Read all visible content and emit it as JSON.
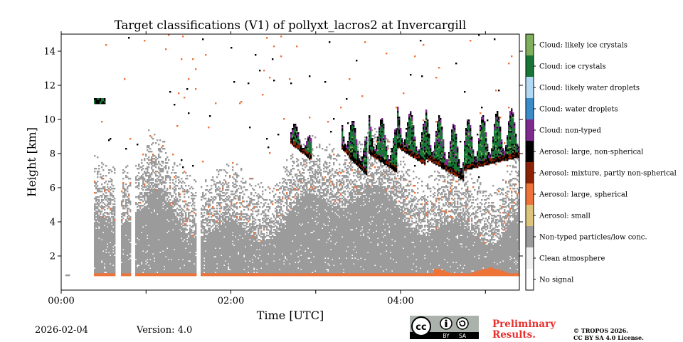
{
  "chart_data": {
    "type": "heatmap",
    "title": "Target classifications (V1) of pollyxt_lacros2 at Invercargill",
    "xlabel": "Time [UTC]",
    "ylabel": "Height [km]",
    "xlim_hours": [
      0,
      5.4
    ],
    "ylim_km": [
      0,
      15
    ],
    "x_ticks": [
      {
        "value": 0,
        "label": "00:00"
      },
      {
        "value": 1,
        "label": ""
      },
      {
        "value": 2,
        "label": "02:00"
      },
      {
        "value": 3,
        "label": ""
      },
      {
        "value": 4,
        "label": "04:00"
      },
      {
        "value": 5,
        "label": ""
      }
    ],
    "y_ticks": [
      {
        "value": 2,
        "label": "2"
      },
      {
        "value": 4,
        "label": "4"
      },
      {
        "value": 6,
        "label": "6"
      },
      {
        "value": 8,
        "label": "8"
      },
      {
        "value": 10,
        "label": "10"
      },
      {
        "value": 12,
        "label": "12"
      },
      {
        "value": 14,
        "label": "14"
      }
    ],
    "colorbar_classes": [
      {
        "label": "No signal",
        "color": "#ffffff"
      },
      {
        "label": "Clean atmosphere",
        "color": "#efefef"
      },
      {
        "label": "Non-typed particles/low conc.",
        "color": "#9b9b9b"
      },
      {
        "label": "Aerosol: small",
        "color": "#dcc479"
      },
      {
        "label": "Aerosol: large, spherical",
        "color": "#ed7339"
      },
      {
        "label": "Aerosol: mixture, partly non-spherical",
        "color": "#8b2206"
      },
      {
        "label": "Aerosol: large, non-spherical",
        "color": "#000000"
      },
      {
        "label": "Cloud: non-typed",
        "color": "#7f2a8e"
      },
      {
        "label": "Cloud: water droplets",
        "color": "#3a8cc8"
      },
      {
        "label": "Cloud: likely water droplets",
        "color": "#b3d8f3"
      },
      {
        "label": "Cloud: ice crystals",
        "color": "#177636"
      },
      {
        "label": "Cloud: likely ice crystals",
        "color": "#7fae5d"
      }
    ],
    "regions": [
      {
        "class": "Non-typed particles/low conc.",
        "t_start": 0.38,
        "t_end": 5.4,
        "z_bottom_km": 0.8,
        "z_top_km": "about 3-7"
      },
      {
        "class": "Aerosol: large, spherical",
        "t_start": 0.38,
        "t_end": 5.4,
        "z_bottom_km": 0.8,
        "z_top_km": 1.2
      },
      {
        "class": "Cloud: ice crystals",
        "t_start": 2.7,
        "t_end": 5.4,
        "z_bottom_km": 6.3,
        "z_top_km": 10.8
      },
      {
        "class": "Cloud: non-typed",
        "t_start": 2.9,
        "t_end": 5.0,
        "z_bottom_km": 7.0,
        "z_top_km": 10.8
      },
      {
        "class": "Aerosol: large, non-spherical",
        "t_start": 3.3,
        "t_end": 5.4,
        "z_bottom_km": 6.5,
        "z_top_km": 10.0
      }
    ]
  },
  "footer": {
    "date": "2026-02-04",
    "version": "Version: 4.0",
    "preliminary_line1": "Preliminary",
    "preliminary_line2": "Results.",
    "copyright_line1": "© TROPOS 2026.",
    "copyright_line2": "CC BY SA 4.0 License.",
    "license_badge": {
      "cc": "cc",
      "by": "BY",
      "sa": "SA"
    }
  },
  "colors": {
    "preliminary": "#e8302e"
  }
}
